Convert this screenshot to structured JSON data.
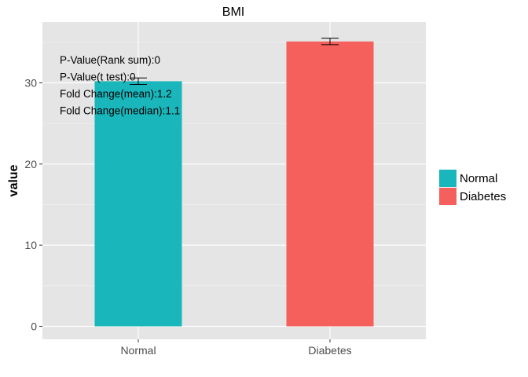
{
  "chart_data": {
    "type": "bar",
    "title": "BMI",
    "xlabel": "",
    "ylabel": "value",
    "categories": [
      "Normal",
      "Diabetes"
    ],
    "values": [
      30.2,
      35.1
    ],
    "error_bars": [
      {
        "low": 29.8,
        "high": 30.6
      },
      {
        "low": 34.7,
        "high": 35.5
      }
    ],
    "colors": [
      "#19b6bb",
      "#f5605c"
    ],
    "ylim": [
      -1.6,
      37.5
    ],
    "yticks": [
      0,
      10,
      20,
      30
    ],
    "grid": true,
    "legend": {
      "placement": "right",
      "entries": [
        {
          "label": "Normal",
          "color": "#19b6bb"
        },
        {
          "label": "Diabetes",
          "color": "#f5605c"
        }
      ]
    },
    "annotations": [
      "P-Value(Rank sum):0",
      "P-Value(t test):0",
      "Fold Change(mean):1.2",
      "Fold Change(median):1.1"
    ]
  }
}
